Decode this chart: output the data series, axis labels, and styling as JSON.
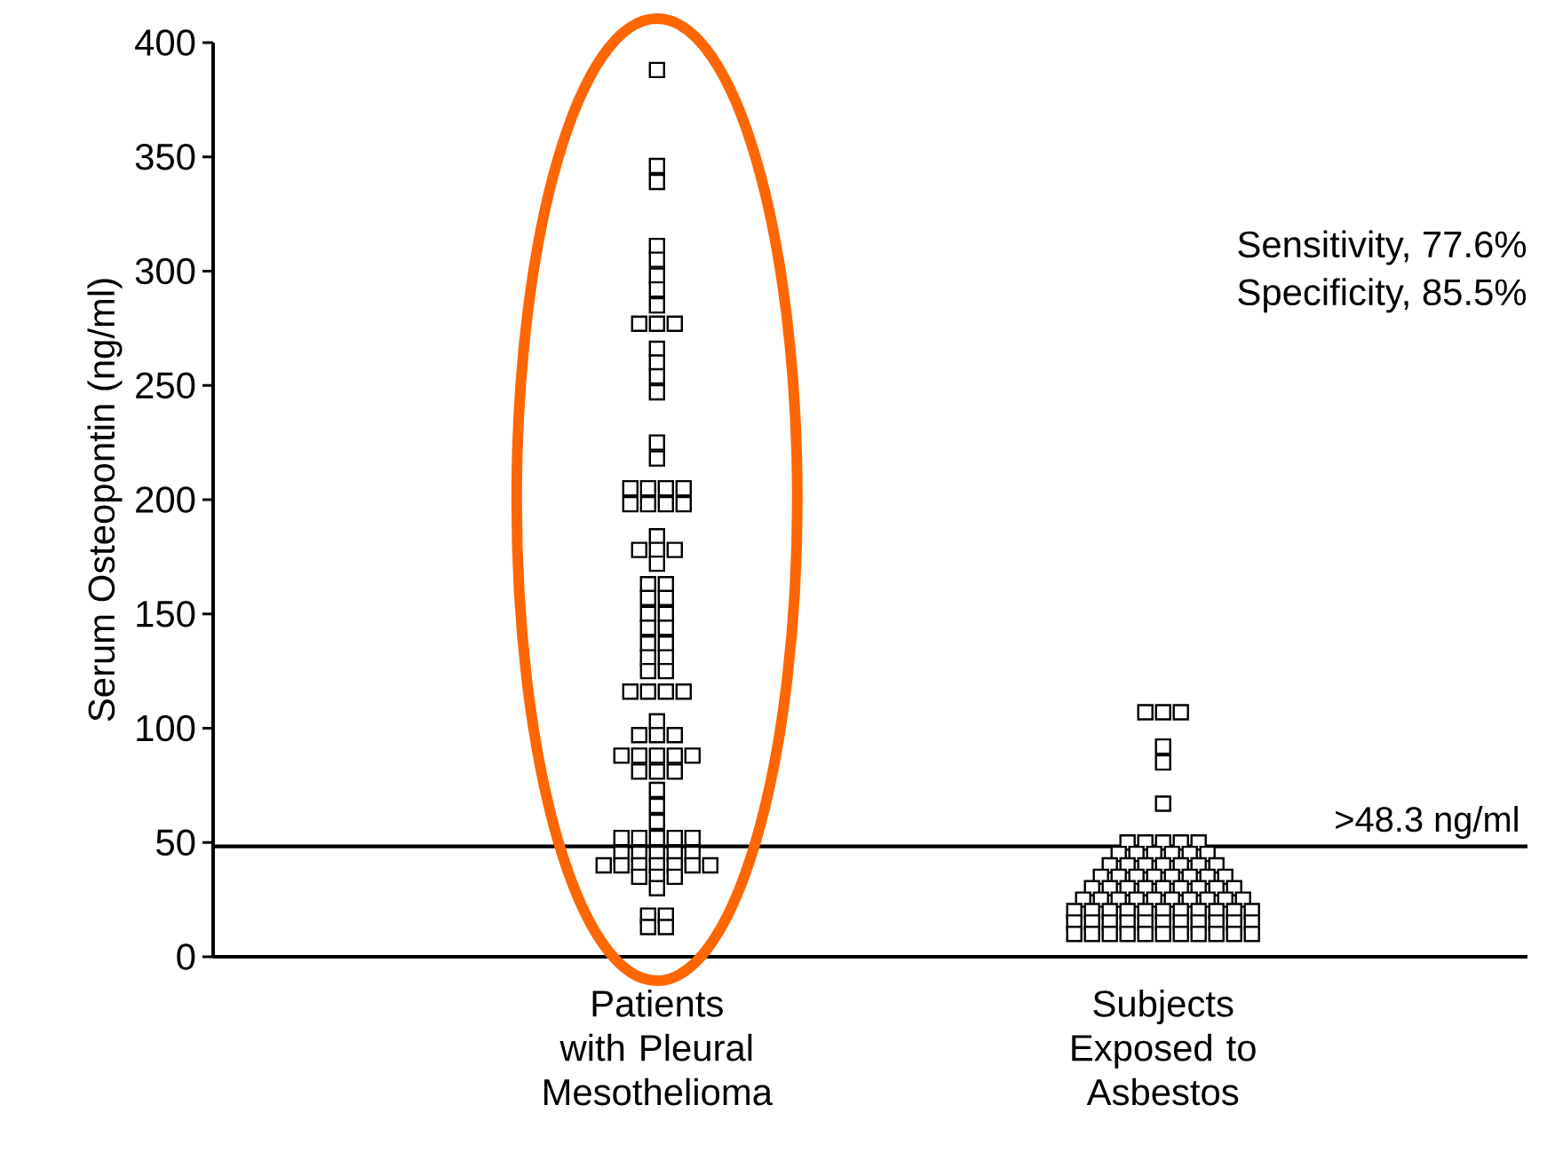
{
  "chart_data": {
    "type": "scatter",
    "ylabel": "Serum Osteopontin (ng/ml)",
    "categories": [
      "Patients with Pleural Mesothelioma",
      "Subjects Exposed to Asbestos"
    ],
    "ylim": [
      0,
      400
    ],
    "yticks": [
      0,
      50,
      100,
      150,
      200,
      250,
      300,
      350,
      400
    ],
    "grid": false,
    "marker": "square",
    "annotations": [
      "Sensitivity, 77.6%",
      "Specificity, 85.5%"
    ],
    "ref_lines": [
      {
        "axis": "y",
        "value": 48.3,
        "label": ">48.3 ng/ml",
        "color": "#000000"
      }
    ],
    "series": [
      {
        "color": "#000000",
        "x": [
          "Patients with Pleural Mesothelioma",
          "Patients with Pleural Mesothelioma",
          "Patients with Pleural Mesothelioma",
          "Patients with Pleural Mesothelioma",
          "Patients with Pleural Mesothelioma",
          "Patients with Pleural Mesothelioma",
          "Patients with Pleural Mesothelioma",
          "Patients with Pleural Mesothelioma",
          "Patients with Pleural Mesothelioma",
          "Patients with Pleural Mesothelioma",
          "Patients with Pleural Mesothelioma",
          "Patients with Pleural Mesothelioma",
          "Patients with Pleural Mesothelioma",
          "Patients with Pleural Mesothelioma",
          "Patients with Pleural Mesothelioma",
          "Patients with Pleural Mesothelioma",
          "Patients with Pleural Mesothelioma",
          "Patients with Pleural Mesothelioma",
          "Patients with Pleural Mesothelioma",
          "Patients with Pleural Mesothelioma",
          "Patients with Pleural Mesothelioma",
          "Patients with Pleural Mesothelioma",
          "Patients with Pleural Mesothelioma",
          "Patients with Pleural Mesothelioma",
          "Patients with Pleural Mesothelioma",
          "Patients with Pleural Mesothelioma",
          "Patients with Pleural Mesothelioma",
          "Patients with Pleural Mesothelioma",
          "Patients with Pleural Mesothelioma",
          "Patients with Pleural Mesothelioma",
          "Patients with Pleural Mesothelioma",
          "Patients with Pleural Mesothelioma",
          "Patients with Pleural Mesothelioma",
          "Patients with Pleural Mesothelioma",
          "Patients with Pleural Mesothelioma",
          "Patients with Pleural Mesothelioma",
          "Patients with Pleural Mesothelioma",
          "Patients with Pleural Mesothelioma",
          "Patients with Pleural Mesothelioma",
          "Patients with Pleural Mesothelioma",
          "Patients with Pleural Mesothelioma",
          "Patients with Pleural Mesothelioma",
          "Patients with Pleural Mesothelioma",
          "Patients with Pleural Mesothelioma",
          "Patients with Pleural Mesothelioma",
          "Patients with Pleural Mesothelioma",
          "Patients with Pleural Mesothelioma",
          "Patients with Pleural Mesothelioma",
          "Patients with Pleural Mesothelioma",
          "Patients with Pleural Mesothelioma",
          "Patients with Pleural Mesothelioma",
          "Patients with Pleural Mesothelioma",
          "Patients with Pleural Mesothelioma",
          "Patients with Pleural Mesothelioma",
          "Patients with Pleural Mesothelioma",
          "Patients with Pleural Mesothelioma",
          "Patients with Pleural Mesothelioma",
          "Patients with Pleural Mesothelioma",
          "Patients with Pleural Mesothelioma",
          "Patients with Pleural Mesothelioma",
          "Patients with Pleural Mesothelioma",
          "Patients with Pleural Mesothelioma",
          "Patients with Pleural Mesothelioma",
          "Patients with Pleural Mesothelioma",
          "Patients with Pleural Mesothelioma",
          "Patients with Pleural Mesothelioma",
          "Patients with Pleural Mesothelioma",
          "Patients with Pleural Mesothelioma",
          "Patients with Pleural Mesothelioma",
          "Patients with Pleural Mesothelioma",
          "Patients with Pleural Mesothelioma",
          "Patients with Pleural Mesothelioma",
          "Patients with Pleural Mesothelioma",
          "Patients with Pleural Mesothelioma",
          "Patients with Pleural Mesothelioma",
          "Patients with Pleural Mesothelioma",
          "Patients with Pleural Mesothelioma",
          "Patients with Pleural Mesothelioma",
          "Patients with Pleural Mesothelioma",
          "Patients with Pleural Mesothelioma",
          "Patients with Pleural Mesothelioma",
          "Patients with Pleural Mesothelioma",
          "Patients with Pleural Mesothelioma",
          "Patients with Pleural Mesothelioma",
          "Patients with Pleural Mesothelioma",
          "Patients with Pleural Mesothelioma",
          "Patients with Pleural Mesothelioma",
          "Patients with Pleural Mesothelioma"
        ],
        "values": [
          388,
          346,
          339,
          311,
          305,
          298,
          292,
          285,
          277,
          277,
          277,
          266,
          260,
          254,
          247,
          225,
          218,
          205,
          205,
          205,
          205,
          198,
          198,
          198,
          198,
          184,
          178,
          178,
          178,
          172,
          163,
          163,
          157,
          157,
          150,
          150,
          144,
          144,
          137,
          137,
          131,
          131,
          125,
          125,
          116,
          116,
          116,
          116,
          103,
          97,
          97,
          97,
          88,
          88,
          88,
          88,
          88,
          81,
          81,
          81,
          73,
          66,
          59,
          52,
          52,
          52,
          52,
          52,
          45,
          45,
          45,
          45,
          45,
          40,
          40,
          40,
          40,
          40,
          40,
          40,
          35,
          35,
          35,
          30,
          18,
          18,
          13,
          13
        ]
      },
      {
        "color": "#000000",
        "x": [
          "Subjects Exposed to Asbestos",
          "Subjects Exposed to Asbestos",
          "Subjects Exposed to Asbestos",
          "Subjects Exposed to Asbestos",
          "Subjects Exposed to Asbestos",
          "Subjects Exposed to Asbestos",
          "Subjects Exposed to Asbestos",
          "Subjects Exposed to Asbestos",
          "Subjects Exposed to Asbestos",
          "Subjects Exposed to Asbestos",
          "Subjects Exposed to Asbestos",
          "Subjects Exposed to Asbestos",
          "Subjects Exposed to Asbestos",
          "Subjects Exposed to Asbestos",
          "Subjects Exposed to Asbestos",
          "Subjects Exposed to Asbestos",
          "Subjects Exposed to Asbestos",
          "Subjects Exposed to Asbestos",
          "Subjects Exposed to Asbestos",
          "Subjects Exposed to Asbestos",
          "Subjects Exposed to Asbestos",
          "Subjects Exposed to Asbestos",
          "Subjects Exposed to Asbestos",
          "Subjects Exposed to Asbestos",
          "Subjects Exposed to Asbestos",
          "Subjects Exposed to Asbestos",
          "Subjects Exposed to Asbestos",
          "Subjects Exposed to Asbestos",
          "Subjects Exposed to Asbestos",
          "Subjects Exposed to Asbestos",
          "Subjects Exposed to Asbestos",
          "Subjects Exposed to Asbestos",
          "Subjects Exposed to Asbestos",
          "Subjects Exposed to Asbestos",
          "Subjects Exposed to Asbestos",
          "Subjects Exposed to Asbestos",
          "Subjects Exposed to Asbestos",
          "Subjects Exposed to Asbestos",
          "Subjects Exposed to Asbestos",
          "Subjects Exposed to Asbestos",
          "Subjects Exposed to Asbestos",
          "Subjects Exposed to Asbestos",
          "Subjects Exposed to Asbestos",
          "Subjects Exposed to Asbestos",
          "Subjects Exposed to Asbestos",
          "Subjects Exposed to Asbestos",
          "Subjects Exposed to Asbestos",
          "Subjects Exposed to Asbestos",
          "Subjects Exposed to Asbestos",
          "Subjects Exposed to Asbestos",
          "Subjects Exposed to Asbestos",
          "Subjects Exposed to Asbestos",
          "Subjects Exposed to Asbestos",
          "Subjects Exposed to Asbestos",
          "Subjects Exposed to Asbestos",
          "Subjects Exposed to Asbestos",
          "Subjects Exposed to Asbestos",
          "Subjects Exposed to Asbestos",
          "Subjects Exposed to Asbestos",
          "Subjects Exposed to Asbestos",
          "Subjects Exposed to Asbestos",
          "Subjects Exposed to Asbestos",
          "Subjects Exposed to Asbestos",
          "Subjects Exposed to Asbestos",
          "Subjects Exposed to Asbestos",
          "Subjects Exposed to Asbestos",
          "Subjects Exposed to Asbestos",
          "Subjects Exposed to Asbestos",
          "Subjects Exposed to Asbestos",
          "Subjects Exposed to Asbestos",
          "Subjects Exposed to Asbestos",
          "Subjects Exposed to Asbestos",
          "Subjects Exposed to Asbestos",
          "Subjects Exposed to Asbestos",
          "Subjects Exposed to Asbestos",
          "Subjects Exposed to Asbestos",
          "Subjects Exposed to Asbestos",
          "Subjects Exposed to Asbestos",
          "Subjects Exposed to Asbestos",
          "Subjects Exposed to Asbestos",
          "Subjects Exposed to Asbestos",
          "Subjects Exposed to Asbestos",
          "Subjects Exposed to Asbestos",
          "Subjects Exposed to Asbestos"
        ],
        "values": [
          107,
          107,
          107,
          92,
          85,
          67,
          50,
          50,
          50,
          50,
          50,
          45,
          45,
          45,
          45,
          45,
          45,
          40,
          40,
          40,
          40,
          40,
          40,
          40,
          35,
          35,
          35,
          35,
          35,
          35,
          35,
          35,
          30,
          30,
          30,
          30,
          30,
          30,
          30,
          30,
          30,
          25,
          25,
          25,
          25,
          25,
          25,
          25,
          25,
          25,
          25,
          20,
          20,
          20,
          20,
          20,
          20,
          20,
          20,
          20,
          20,
          20,
          15,
          15,
          15,
          15,
          15,
          15,
          15,
          15,
          15,
          15,
          15,
          10,
          10,
          10,
          10,
          10,
          10,
          10,
          10,
          10,
          10,
          10
        ]
      }
    ]
  }
}
